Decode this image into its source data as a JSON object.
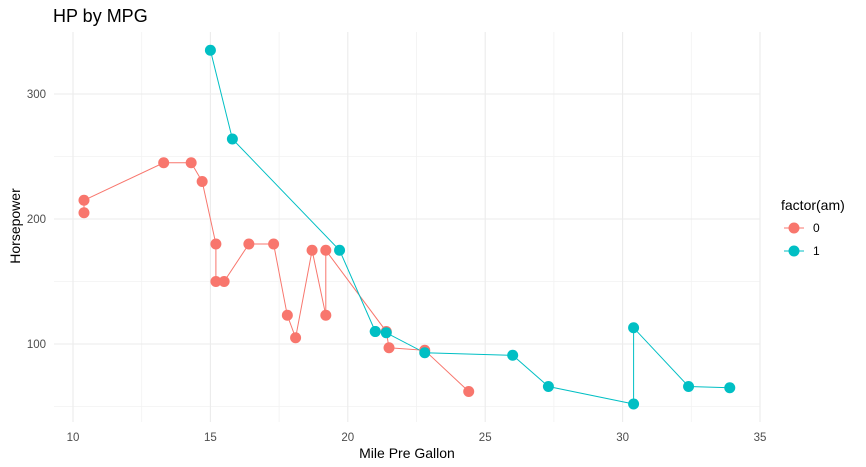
{
  "chart_data": {
    "type": "line",
    "title": "HP by MPG",
    "xlabel": "Mile Pre Gallon",
    "ylabel": "Horsepower",
    "xlim": [
      10,
      35
    ],
    "ylim": [
      40,
      350
    ],
    "xticks": [
      10,
      15,
      20,
      25,
      30,
      35
    ],
    "xtick_labels": [
      "10",
      "15",
      "20",
      "25",
      "30",
      "35"
    ],
    "yticks": [
      100,
      200,
      300
    ],
    "ytick_labels": [
      "100",
      "200",
      "300"
    ],
    "grid": true,
    "legend": {
      "title": "factor(am)",
      "position": "right",
      "entries": [
        "0",
        "1"
      ]
    },
    "colors": [
      "#F8766D",
      "#00BFC4"
    ],
    "series": [
      {
        "name": "0",
        "color": "#F8766D",
        "points": [
          {
            "x": 10.4,
            "y": 205
          },
          {
            "x": 10.4,
            "y": 215
          },
          {
            "x": 13.3,
            "y": 245
          },
          {
            "x": 14.3,
            "y": 245
          },
          {
            "x": 14.7,
            "y": 230
          },
          {
            "x": 15.2,
            "y": 180
          },
          {
            "x": 15.2,
            "y": 150
          },
          {
            "x": 15.5,
            "y": 150
          },
          {
            "x": 16.4,
            "y": 180
          },
          {
            "x": 17.3,
            "y": 180
          },
          {
            "x": 17.8,
            "y": 123
          },
          {
            "x": 18.1,
            "y": 105
          },
          {
            "x": 18.7,
            "y": 175
          },
          {
            "x": 19.2,
            "y": 123
          },
          {
            "x": 19.2,
            "y": 175
          },
          {
            "x": 21.4,
            "y": 110
          },
          {
            "x": 21.5,
            "y": 97
          },
          {
            "x": 22.8,
            "y": 95
          },
          {
            "x": 24.4,
            "y": 62
          }
        ]
      },
      {
        "name": "1",
        "color": "#00BFC4",
        "points": [
          {
            "x": 15.0,
            "y": 335
          },
          {
            "x": 15.8,
            "y": 264
          },
          {
            "x": 19.7,
            "y": 175
          },
          {
            "x": 21.0,
            "y": 110
          },
          {
            "x": 21.0,
            "y": 110
          },
          {
            "x": 21.4,
            "y": 109
          },
          {
            "x": 22.8,
            "y": 93
          },
          {
            "x": 26.0,
            "y": 91
          },
          {
            "x": 27.3,
            "y": 66
          },
          {
            "x": 30.4,
            "y": 52
          },
          {
            "x": 30.4,
            "y": 113
          },
          {
            "x": 32.4,
            "y": 66
          },
          {
            "x": 33.9,
            "y": 65
          }
        ]
      }
    ]
  }
}
